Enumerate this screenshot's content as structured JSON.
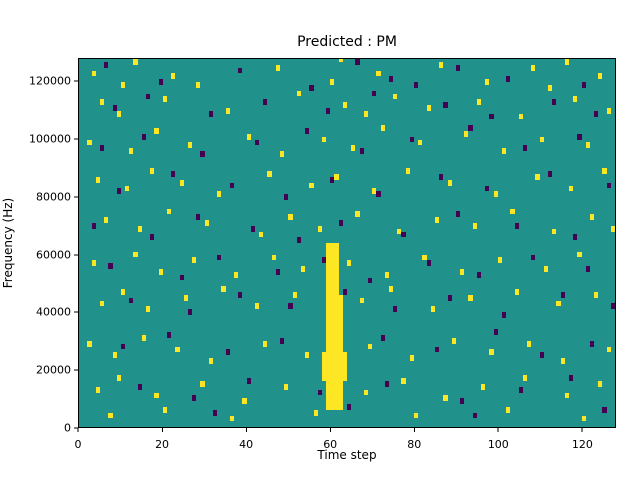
{
  "figure": {
    "background": "#ffffff"
  },
  "chart_data": {
    "type": "heatmap",
    "title": "Predicted : PM",
    "xlabel": "Time step",
    "ylabel": "Frequency (Hz)",
    "x_range": [
      0,
      128
    ],
    "y_range": [
      0,
      128000
    ],
    "x_ticks": [
      0,
      20,
      40,
      60,
      80,
      100,
      120
    ],
    "y_ticks": [
      0,
      20000,
      40000,
      60000,
      80000,
      100000,
      120000
    ],
    "grid": false,
    "legend": "none",
    "colors": {
      "background": "#21918c",
      "high": "#fde725",
      "low": "#440154"
    },
    "cell_size": {
      "x": 1,
      "y": 2000
    },
    "streaks": [
      {
        "x0": 59,
        "x1": 63,
        "y0": 6000,
        "y1": 46000
      },
      {
        "x0": 59,
        "x1": 62,
        "y0": 46000,
        "y1": 64000
      },
      {
        "x0": 58,
        "x1": 64,
        "y0": 16000,
        "y1": 26000
      }
    ],
    "points": {
      "yellow": [
        [
          3,
          122000
        ],
        [
          10,
          118000
        ],
        [
          13,
          126000
        ],
        [
          22,
          121000
        ],
        [
          28,
          118000
        ],
        [
          47,
          124000
        ],
        [
          60,
          119000
        ],
        [
          62,
          127000
        ],
        [
          71,
          122000
        ],
        [
          86,
          125000
        ],
        [
          97,
          119000
        ],
        [
          108,
          124000
        ],
        [
          112,
          117000
        ],
        [
          116,
          126000
        ],
        [
          124,
          121000
        ],
        [
          5,
          112000
        ],
        [
          9,
          108000
        ],
        [
          20,
          113000
        ],
        [
          35,
          109000
        ],
        [
          52,
          115000
        ],
        [
          63,
          111000
        ],
        [
          68,
          108000
        ],
        [
          75,
          114000
        ],
        [
          83,
          110000
        ],
        [
          95,
          112000
        ],
        [
          105,
          107000
        ],
        [
          118,
          113000
        ],
        [
          126,
          109000
        ],
        [
          2,
          98000
        ],
        [
          12,
          95000
        ],
        [
          18,
          102000
        ],
        [
          26,
          97000
        ],
        [
          40,
          100000
        ],
        [
          48,
          94000
        ],
        [
          58,
          99000
        ],
        [
          65,
          96000
        ],
        [
          72,
          103000
        ],
        [
          81,
          98000
        ],
        [
          92,
          101000
        ],
        [
          101,
          95000
        ],
        [
          110,
          99000
        ],
        [
          121,
          97000
        ],
        [
          4,
          85000
        ],
        [
          11,
          82000
        ],
        [
          17,
          88000
        ],
        [
          24,
          84000
        ],
        [
          33,
          80000
        ],
        [
          45,
          87000
        ],
        [
          55,
          83000
        ],
        [
          61,
          86000
        ],
        [
          70,
          81000
        ],
        [
          78,
          88000
        ],
        [
          88,
          84000
        ],
        [
          99,
          80000
        ],
        [
          109,
          86000
        ],
        [
          117,
          82000
        ],
        [
          125,
          88000
        ],
        [
          6,
          71000
        ],
        [
          14,
          68000
        ],
        [
          21,
          74000
        ],
        [
          30,
          70000
        ],
        [
          43,
          66000
        ],
        [
          50,
          72000
        ],
        [
          57,
          68000
        ],
        [
          66,
          73000
        ],
        [
          76,
          67000
        ],
        [
          85,
          71000
        ],
        [
          94,
          69000
        ],
        [
          103,
          74000
        ],
        [
          113,
          67000
        ],
        [
          122,
          72000
        ],
        [
          127,
          68000
        ],
        [
          3,
          56000
        ],
        [
          13,
          59000
        ],
        [
          19,
          53000
        ],
        [
          27,
          57000
        ],
        [
          37,
          52000
        ],
        [
          46,
          58000
        ],
        [
          53,
          54000
        ],
        [
          64,
          56000
        ],
        [
          73,
          52000
        ],
        [
          82,
          58000
        ],
        [
          91,
          53000
        ],
        [
          100,
          57000
        ],
        [
          111,
          54000
        ],
        [
          119,
          59000
        ],
        [
          5,
          42000
        ],
        [
          10,
          46000
        ],
        [
          16,
          40000
        ],
        [
          25,
          44000
        ],
        [
          34,
          47000
        ],
        [
          42,
          41000
        ],
        [
          51,
          45000
        ],
        [
          67,
          43000
        ],
        [
          74,
          47000
        ],
        [
          84,
          40000
        ],
        [
          93,
          44000
        ],
        [
          104,
          46000
        ],
        [
          114,
          42000
        ],
        [
          123,
          45000
        ],
        [
          2,
          28000
        ],
        [
          8,
          24000
        ],
        [
          15,
          30000
        ],
        [
          23,
          26000
        ],
        [
          31,
          22000
        ],
        [
          44,
          28000
        ],
        [
          54,
          24000
        ],
        [
          69,
          27000
        ],
        [
          79,
          23000
        ],
        [
          89,
          29000
        ],
        [
          98,
          25000
        ],
        [
          107,
          28000
        ],
        [
          115,
          22000
        ],
        [
          126,
          26000
        ],
        [
          4,
          12000
        ],
        [
          9,
          16000
        ],
        [
          18,
          10000
        ],
        [
          29,
          14000
        ],
        [
          39,
          8000
        ],
        [
          49,
          13000
        ],
        [
          68,
          11000
        ],
        [
          77,
          15000
        ],
        [
          87,
          9000
        ],
        [
          96,
          13000
        ],
        [
          106,
          16000
        ],
        [
          116,
          10000
        ],
        [
          124,
          14000
        ],
        [
          7,
          3000
        ],
        [
          20,
          5000
        ],
        [
          36,
          2000
        ],
        [
          56,
          4000
        ],
        [
          80,
          3000
        ],
        [
          102,
          5000
        ],
        [
          120,
          2000
        ]
      ],
      "purple": [
        [
          6,
          125000
        ],
        [
          19,
          119000
        ],
        [
          38,
          123000
        ],
        [
          55,
          117000
        ],
        [
          66,
          126000
        ],
        [
          74,
          120000
        ],
        [
          80,
          118000
        ],
        [
          90,
          124000
        ],
        [
          102,
          120000
        ],
        [
          120,
          118000
        ],
        [
          8,
          110000
        ],
        [
          16,
          114000
        ],
        [
          31,
          108000
        ],
        [
          44,
          112000
        ],
        [
          59,
          109000
        ],
        [
          70,
          115000
        ],
        [
          87,
          111000
        ],
        [
          98,
          107000
        ],
        [
          113,
          112000
        ],
        [
          123,
          108000
        ],
        [
          5,
          96000
        ],
        [
          15,
          100000
        ],
        [
          29,
          94000
        ],
        [
          42,
          98000
        ],
        [
          54,
          102000
        ],
        [
          67,
          95000
        ],
        [
          79,
          99000
        ],
        [
          93,
          103000
        ],
        [
          106,
          96000
        ],
        [
          119,
          100000
        ],
        [
          9,
          81000
        ],
        [
          22,
          87000
        ],
        [
          36,
          83000
        ],
        [
          49,
          79000
        ],
        [
          60,
          85000
        ],
        [
          71,
          80000
        ],
        [
          86,
          86000
        ],
        [
          97,
          82000
        ],
        [
          112,
          87000
        ],
        [
          126,
          83000
        ],
        [
          3,
          69000
        ],
        [
          17,
          65000
        ],
        [
          28,
          72000
        ],
        [
          41,
          68000
        ],
        [
          52,
          64000
        ],
        [
          62,
          70000
        ],
        [
          77,
          66000
        ],
        [
          90,
          73000
        ],
        [
          104,
          69000
        ],
        [
          118,
          65000
        ],
        [
          7,
          55000
        ],
        [
          24,
          51000
        ],
        [
          33,
          58000
        ],
        [
          47,
          53000
        ],
        [
          58,
          57000
        ],
        [
          69,
          50000
        ],
        [
          83,
          56000
        ],
        [
          95,
          52000
        ],
        [
          108,
          58000
        ],
        [
          121,
          54000
        ],
        [
          12,
          43000
        ],
        [
          26,
          39000
        ],
        [
          38,
          45000
        ],
        [
          50,
          41000
        ],
        [
          63,
          46000
        ],
        [
          75,
          40000
        ],
        [
          88,
          44000
        ],
        [
          101,
          38000
        ],
        [
          115,
          45000
        ],
        [
          127,
          41000
        ],
        [
          10,
          27000
        ],
        [
          21,
          31000
        ],
        [
          35,
          25000
        ],
        [
          48,
          29000
        ],
        [
          61,
          23000
        ],
        [
          72,
          30000
        ],
        [
          85,
          26000
        ],
        [
          99,
          32000
        ],
        [
          110,
          24000
        ],
        [
          122,
          28000
        ],
        [
          14,
          13000
        ],
        [
          27,
          9000
        ],
        [
          40,
          15000
        ],
        [
          57,
          11000
        ],
        [
          73,
          14000
        ],
        [
          91,
          8000
        ],
        [
          105,
          12000
        ],
        [
          117,
          16000
        ],
        [
          32,
          4000
        ],
        [
          64,
          6000
        ],
        [
          94,
          3000
        ],
        [
          125,
          5000
        ]
      ]
    }
  }
}
